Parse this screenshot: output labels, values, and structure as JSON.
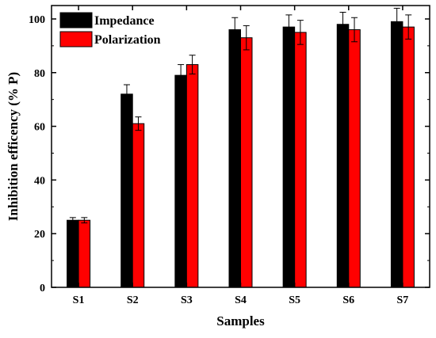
{
  "chart_data": {
    "type": "bar",
    "xlabel": "Samples",
    "ylabel": "Inhibition efficency (% P)",
    "ylim": [
      0,
      105
    ],
    "yticks": [
      0,
      20,
      40,
      60,
      80,
      100
    ],
    "categories": [
      "S1",
      "S2",
      "S3",
      "S4",
      "S5",
      "S6",
      "S7"
    ],
    "series": [
      {
        "name": "Impedance",
        "color": "#000000",
        "values": [
          25,
          72,
          79,
          96,
          97,
          98,
          99
        ],
        "errors": [
          1,
          3.5,
          4,
          4.5,
          4.5,
          4.5,
          5
        ]
      },
      {
        "name": "Polarization",
        "color": "#ff0000",
        "values": [
          25,
          61,
          83,
          93,
          95,
          96,
          97
        ],
        "errors": [
          1,
          2.5,
          3.5,
          4.5,
          4.5,
          4.5,
          4.5
        ]
      }
    ],
    "legend_position": "top-left",
    "grid": false
  }
}
